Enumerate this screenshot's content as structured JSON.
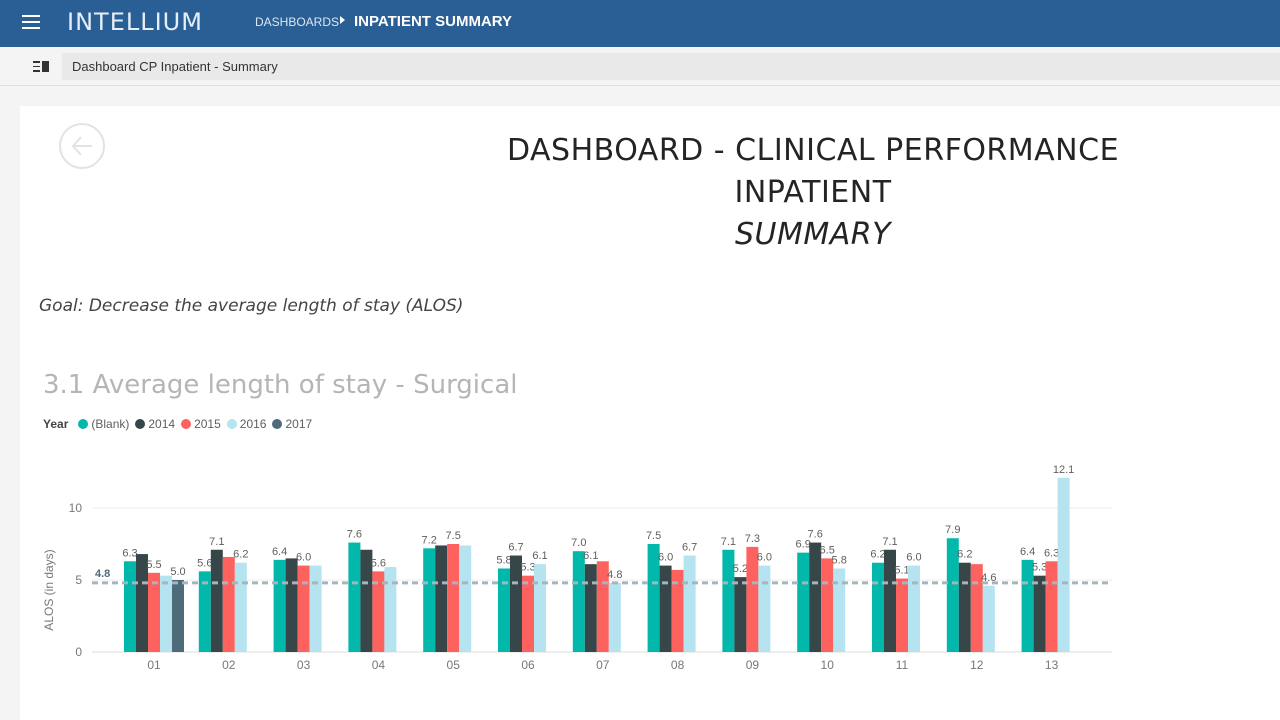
{
  "header": {
    "brand": "INTELLIUM",
    "breadcrumb": "DASHBOARDS",
    "current": "INPATIENT SUMMARY"
  },
  "subbar": {
    "page_name": "Dashboard CP Inpatient - Summary"
  },
  "hero": {
    "line1": "DASHBOARD - CLINICAL PERFORMANCE",
    "line2": "INPATIENT",
    "line3": "SUMMARY"
  },
  "goal": "Goal: Decrease the average length of stay (ALOS)",
  "colors": {
    "blank": "#01b8aa",
    "y2014": "#374649",
    "y2015": "#fd625e",
    "y2016": "#b5e3f0",
    "y2017": "#4d6b78",
    "reference": "#a6b5bd",
    "topbar": "#2a5f95"
  },
  "icons": {
    "menu": "hamburger-icon",
    "page": "page-list-icon",
    "back": "back-arrow-icon"
  },
  "chart_data": {
    "type": "bar",
    "title": "3.1 Average length of stay - Surgical",
    "legend_title": "Year",
    "ylabel": "ALOS (in days)",
    "xlabel": "",
    "ylim": [
      0,
      13
    ],
    "yticks": [
      0,
      5,
      10
    ],
    "legend_position": "top-left",
    "grid": true,
    "reference_line": {
      "value": 4.8,
      "label": "4.8"
    },
    "categories": [
      "01",
      "02",
      "03",
      "04",
      "05",
      "06",
      "07",
      "08",
      "09",
      "10",
      "11",
      "12",
      "13"
    ],
    "series": [
      {
        "name": "(Blank)",
        "color": "#01b8aa",
        "values": [
          6.3,
          5.6,
          6.4,
          7.6,
          7.2,
          5.8,
          7.0,
          7.5,
          7.1,
          6.9,
          6.2,
          7.9,
          6.4
        ]
      },
      {
        "name": "2014",
        "color": "#374649",
        "values": [
          6.8,
          7.1,
          6.5,
          7.1,
          7.4,
          6.7,
          6.1,
          6.0,
          5.2,
          7.6,
          7.1,
          6.2,
          5.3
        ]
      },
      {
        "name": "2015",
        "color": "#fd625e",
        "values": [
          5.5,
          6.6,
          6.0,
          5.6,
          7.5,
          5.3,
          6.3,
          5.7,
          7.3,
          6.5,
          5.1,
          6.1,
          6.3
        ]
      },
      {
        "name": "2016",
        "color": "#b5e3f0",
        "values": [
          5.3,
          6.2,
          6.0,
          5.9,
          7.4,
          6.1,
          4.8,
          6.7,
          6.0,
          5.8,
          6.0,
          4.6,
          12.1
        ]
      },
      {
        "name": "2017",
        "color": "#4d6b78",
        "values": [
          5.0,
          null,
          null,
          null,
          null,
          null,
          null,
          null,
          null,
          null,
          null,
          null,
          null
        ]
      }
    ],
    "data_labels": [
      [
        "6.3",
        "5.6",
        "6.4",
        "7.6",
        "7.2",
        "5.8",
        "7.0",
        "7.5",
        "7.1",
        "6.9",
        "6.2",
        "7.9",
        "6.4"
      ],
      [
        "",
        "7.1",
        "",
        "",
        "",
        "6.7",
        "6.1",
        "6.0",
        "5.2",
        "7.6",
        "7.1",
        "6.2",
        "5.3"
      ],
      [
        "5.5",
        "",
        "6.0",
        "5.6",
        "7.5",
        "5.3",
        "",
        "",
        "7.3",
        "6.5",
        "5.1",
        "",
        "6.3"
      ],
      [
        "",
        "6.2",
        "",
        "",
        "",
        "6.1",
        "4.8",
        "6.7",
        "6.0",
        "5.8",
        "6.0",
        "4.6",
        "12.1"
      ],
      [
        "5.0",
        "",
        "",
        "",
        "",
        "",
        "",
        "",
        "",
        "",
        "",
        "",
        ""
      ]
    ]
  }
}
